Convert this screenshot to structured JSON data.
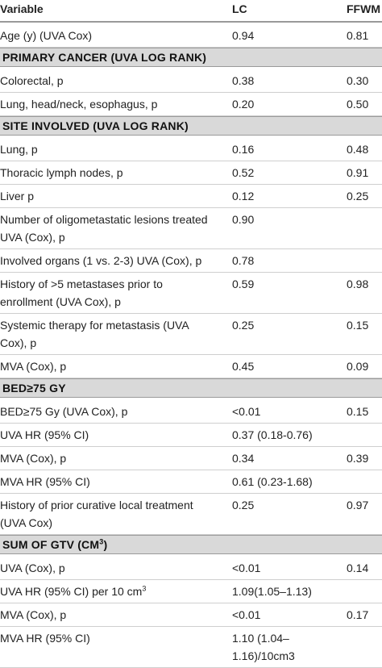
{
  "header": {
    "variable": "Variable",
    "lc": "LC",
    "ffwm": "FFWM"
  },
  "rows": [
    {
      "type": "data",
      "label": "Age (y) (UVA Cox)",
      "lc": "0.94",
      "ffwm": "0.81"
    },
    {
      "type": "section",
      "label": "PRIMARY CANCER (UVA LOG RANK)"
    },
    {
      "type": "data",
      "label": "Colorectal, p",
      "lc": "0.38",
      "ffwm": "0.30"
    },
    {
      "type": "data",
      "label": "Lung, head/neck, esophagus, p",
      "lc": "0.20",
      "ffwm": "0.50"
    },
    {
      "type": "section",
      "label": "SITE INVOLVED (UVA LOG RANK)"
    },
    {
      "type": "data",
      "label": "Lung, p",
      "lc": "0.16",
      "ffwm": "0.48"
    },
    {
      "type": "data",
      "label": "Thoracic lymph nodes, p",
      "lc": "0.52",
      "ffwm": "0.91"
    },
    {
      "type": "data",
      "label": "Liver p",
      "lc": "0.12",
      "ffwm": "0.25"
    },
    {
      "type": "data",
      "label": "Number of oligometastatic lesions treated\nUVA (Cox), p",
      "lc": "0.90",
      "ffwm": ""
    },
    {
      "type": "data",
      "label": "Involved organs (1 vs. 2-3) UVA (Cox), p",
      "lc": "0.78",
      "ffwm": ""
    },
    {
      "type": "data",
      "label": "History of >5 metastases prior to\nenrollment (UVA Cox), p",
      "lc": "0.59",
      "ffwm": "0.98"
    },
    {
      "type": "data",
      "label": "Systemic therapy for metastasis (UVA\nCox), p",
      "lc": "0.25",
      "ffwm": "0.15"
    },
    {
      "type": "data",
      "label": "MVA (Cox), p",
      "lc": "0.45",
      "ffwm": "0.09"
    },
    {
      "type": "section",
      "label": "BED≥75 GY"
    },
    {
      "type": "data",
      "label": "BED≥75 Gy (UVA Cox), p",
      "lc": "<0.01",
      "ffwm": "0.15"
    },
    {
      "type": "data",
      "label": "UVA HR (95% CI)",
      "lc": "0.37 (0.18-0.76)",
      "ffwm": ""
    },
    {
      "type": "data",
      "label": "MVA (Cox), p",
      "lc": "0.34",
      "ffwm": "0.39"
    },
    {
      "type": "data",
      "label": "MVA HR (95% CI)",
      "lc": "0.61 (0.23-1.68)",
      "ffwm": ""
    },
    {
      "type": "data",
      "label": "History of prior curative local treatment\n(UVA Cox)",
      "lc": "0.25",
      "ffwm": "0.97"
    },
    {
      "type": "section",
      "label": "SUM OF GTV (CM",
      "sup": "3",
      "label_end": ")"
    },
    {
      "type": "data",
      "label": "UVA (Cox), p",
      "lc": "<0.01",
      "ffwm": "0.14"
    },
    {
      "type": "data",
      "label": "UVA HR (95% CI) per 10 cm",
      "sup": "3",
      "lc": "1.09(1.05–1.13)",
      "ffwm": ""
    },
    {
      "type": "data",
      "label": "MVA (Cox), p",
      "lc": "<0.01",
      "ffwm": "0.17"
    },
    {
      "type": "data",
      "label": "MVA HR (95% CI)",
      "lc": "1.10 (1.04–\n1.16)/10cm3",
      "ffwm": ""
    }
  ]
}
